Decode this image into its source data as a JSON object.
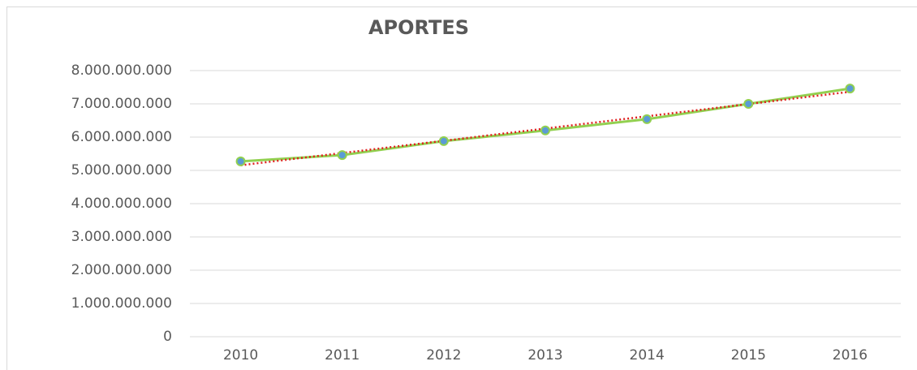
{
  "chart_data": {
    "type": "line",
    "title": "APORTES",
    "categories": [
      "2010",
      "2011",
      "2012",
      "2013",
      "2014",
      "2015",
      "2016"
    ],
    "series": [
      {
        "name": "APORTES",
        "color": "#92d050",
        "marker_color": "#5b9bd5",
        "values": [
          5270000000,
          5460000000,
          5880000000,
          6200000000,
          6540000000,
          7000000000,
          7460000000
        ]
      }
    ],
    "ylim": [
      0,
      8000000000
    ],
    "yticks": [
      0,
      {
        "value": 1000000000,
        "label": "1.000.000.000"
      },
      {
        "value": 2000000000,
        "label": "2.000.000.000"
      },
      {
        "value": 3000000000,
        "label": "3.000.000.000"
      },
      {
        "value": 4000000000,
        "label": "4.000.000.000"
      },
      {
        "value": 5000000000,
        "label": "5.000.000.000"
      },
      {
        "value": 6000000000,
        "label": "6.000.000.000"
      },
      {
        "value": 7000000000,
        "label": "7.000.000.000"
      },
      {
        "value": 8000000000,
        "label": "8.000.000.000"
      }
    ],
    "grid": true,
    "trendline": {
      "kind": "linear",
      "color": "#e02020"
    }
  }
}
